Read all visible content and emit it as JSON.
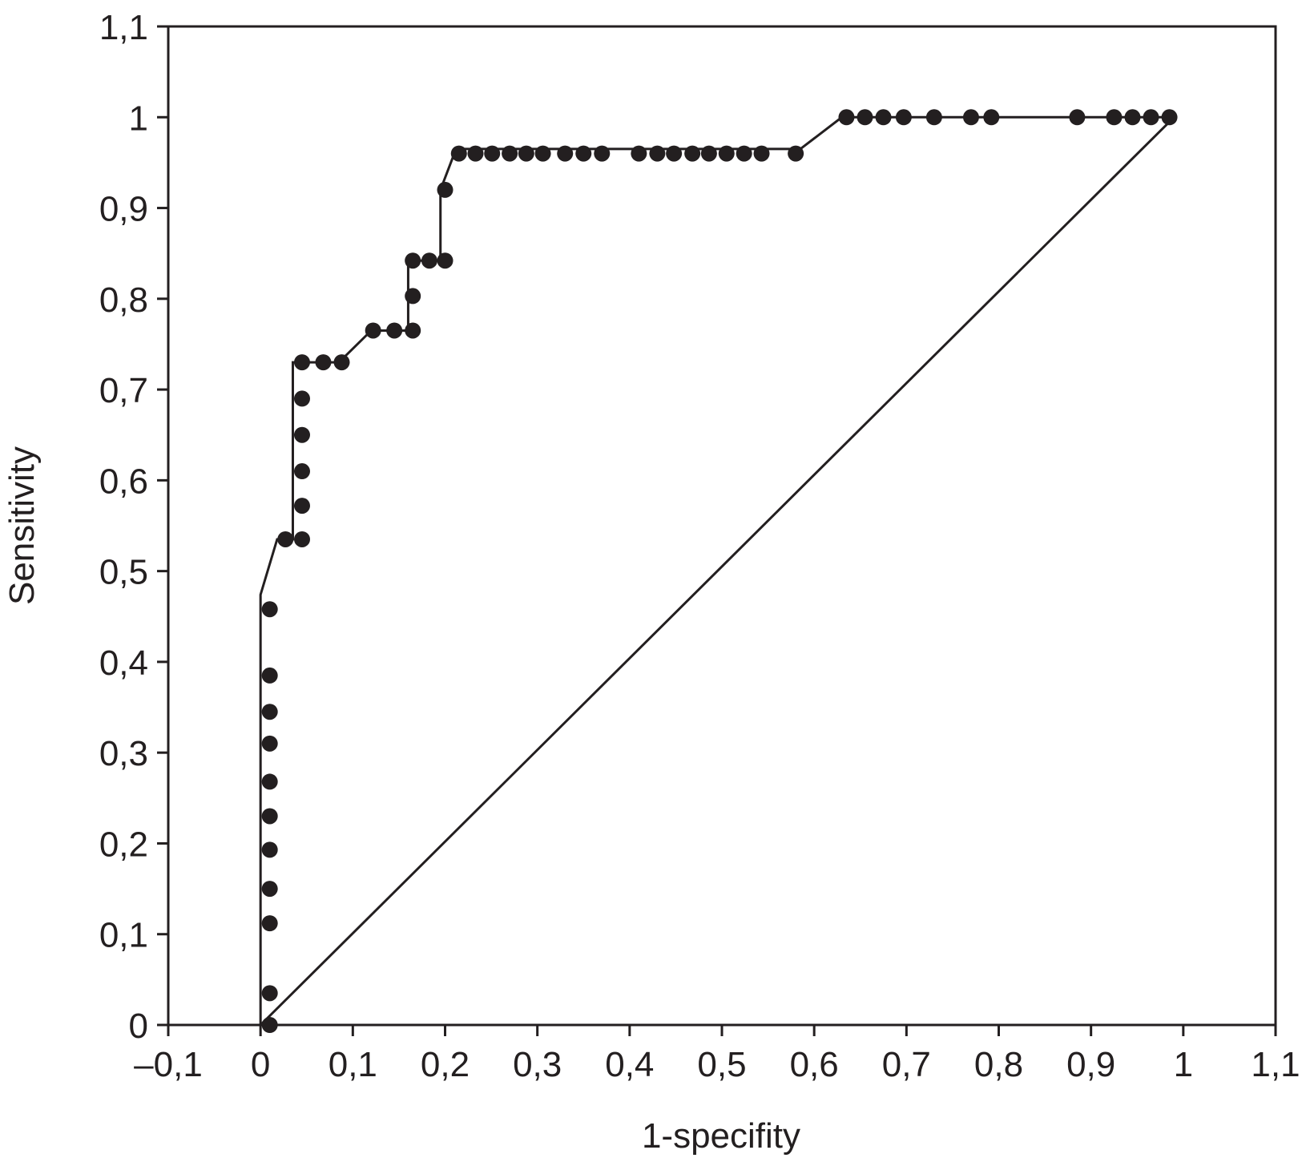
{
  "chart_data": {
    "type": "line",
    "title": "",
    "xlabel": "1-specifity",
    "ylabel": "Sensitivity",
    "xlim": [
      -0.1,
      1.1
    ],
    "ylim": [
      0,
      1.1
    ],
    "x_ticks": [
      -0.1,
      0,
      0.1,
      0.2,
      0.3,
      0.4,
      0.5,
      0.6,
      0.7,
      0.8,
      0.9,
      1,
      1.1
    ],
    "x_tick_labels": [
      "–0,1",
      "0",
      "0,1",
      "0,2",
      "0,3",
      "0,4",
      "0,5",
      "0,6",
      "0,7",
      "0,8",
      "0,9",
      "1",
      "1,1"
    ],
    "y_ticks": [
      0,
      0.1,
      0.2,
      0.3,
      0.4,
      0.5,
      0.6,
      0.7,
      0.8,
      0.9,
      1,
      1.1
    ],
    "y_tick_labels": [
      "0",
      "0,1",
      "0,2",
      "0,3",
      "0,4",
      "0,5",
      "0,6",
      "0,7",
      "0,8",
      "0,9",
      "1",
      "1,1"
    ],
    "grid": false,
    "colors": {
      "line": "#231f20",
      "marker": "#231f20",
      "frame": "#231f20",
      "background": "#ffffff"
    },
    "series": [
      {
        "type": "line",
        "x": [
          0.0,
          0.0,
          0.018,
          0.035,
          0.035,
          0.065,
          0.085,
          0.12,
          0.145,
          0.16,
          0.16,
          0.185,
          0.195,
          0.195,
          0.21,
          0.22,
          0.57,
          0.585,
          0.63,
          0.99
        ],
        "y": [
          0.0,
          0.474,
          0.535,
          0.535,
          0.73,
          0.73,
          0.73,
          0.765,
          0.765,
          0.765,
          0.842,
          0.842,
          0.842,
          0.92,
          0.96,
          0.965,
          0.965,
          0.965,
          1.0,
          1.0
        ]
      },
      {
        "type": "line",
        "x": [
          0.0,
          0.99
        ],
        "y": [
          0.0,
          1.0
        ]
      },
      {
        "type": "scatter",
        "points": [
          [
            0.01,
            0.0
          ],
          [
            0.01,
            0.035
          ],
          [
            0.01,
            0.112
          ],
          [
            0.01,
            0.15
          ],
          [
            0.01,
            0.193
          ],
          [
            0.01,
            0.23
          ],
          [
            0.01,
            0.268
          ],
          [
            0.01,
            0.31
          ],
          [
            0.01,
            0.345
          ],
          [
            0.01,
            0.385
          ],
          [
            0.01,
            0.458
          ],
          [
            0.027,
            0.535
          ],
          [
            0.045,
            0.535
          ],
          [
            0.045,
            0.572
          ],
          [
            0.045,
            0.61
          ],
          [
            0.045,
            0.65
          ],
          [
            0.045,
            0.69
          ],
          [
            0.045,
            0.73
          ],
          [
            0.068,
            0.73
          ],
          [
            0.088,
            0.73
          ],
          [
            0.122,
            0.765
          ],
          [
            0.145,
            0.765
          ],
          [
            0.165,
            0.765
          ],
          [
            0.165,
            0.803
          ],
          [
            0.165,
            0.842
          ],
          [
            0.183,
            0.842
          ],
          [
            0.2,
            0.842
          ],
          [
            0.2,
            0.92
          ],
          [
            0.215,
            0.96
          ],
          [
            0.233,
            0.96
          ],
          [
            0.251,
            0.96
          ],
          [
            0.27,
            0.96
          ],
          [
            0.288,
            0.96
          ],
          [
            0.306,
            0.96
          ],
          [
            0.33,
            0.96
          ],
          [
            0.35,
            0.96
          ],
          [
            0.37,
            0.96
          ],
          [
            0.41,
            0.96
          ],
          [
            0.43,
            0.96
          ],
          [
            0.448,
            0.96
          ],
          [
            0.468,
            0.96
          ],
          [
            0.486,
            0.96
          ],
          [
            0.505,
            0.96
          ],
          [
            0.524,
            0.96
          ],
          [
            0.543,
            0.96
          ],
          [
            0.58,
            0.96
          ],
          [
            0.635,
            1.0
          ],
          [
            0.655,
            1.0
          ],
          [
            0.675,
            1.0
          ],
          [
            0.697,
            1.0
          ],
          [
            0.73,
            1.0
          ],
          [
            0.77,
            1.0
          ],
          [
            0.792,
            1.0
          ],
          [
            0.885,
            1.0
          ],
          [
            0.925,
            1.0
          ],
          [
            0.945,
            1.0
          ],
          [
            0.965,
            1.0
          ],
          [
            0.985,
            1.0
          ]
        ]
      }
    ]
  }
}
